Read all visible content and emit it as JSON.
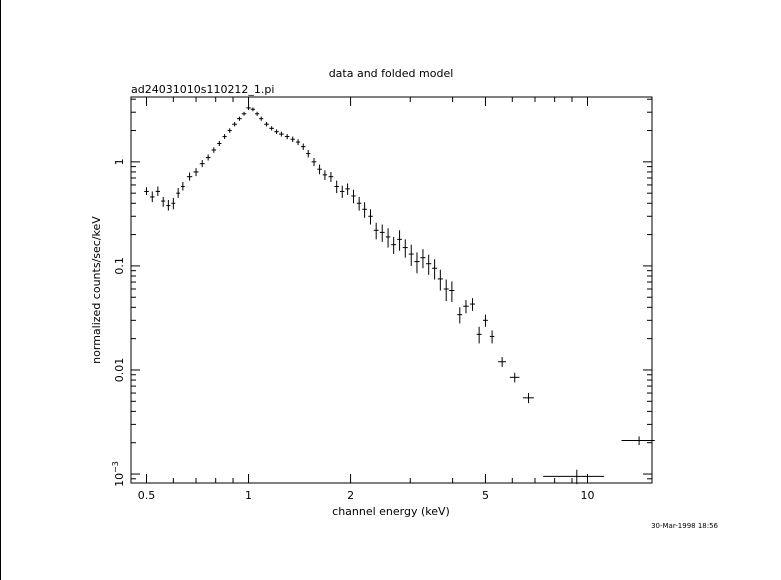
{
  "chart_data": {
    "type": "scatter",
    "title": "data and folded model",
    "subtitle": "ad24031010s110212_1.pi",
    "xlabel": "channel energy (keV)",
    "ylabel": "normalized counts/sec/keV",
    "timestamp": "30-Mar-1998 18:56",
    "x_scale": "log",
    "y_scale": "log",
    "xlim": [
      0.45,
      15.5
    ],
    "ylim": [
      0.00082,
      4.2
    ],
    "xticks": [
      {
        "value": 0.5,
        "label": "0.5"
      },
      {
        "value": 1,
        "label": "1"
      },
      {
        "value": 2,
        "label": "2"
      },
      {
        "value": 5,
        "label": "5"
      },
      {
        "value": 10,
        "label": "10"
      }
    ],
    "yticks": [
      {
        "value": 0.001,
        "label": "10",
        "exp": "−3"
      },
      {
        "value": 0.01,
        "label": "0.01"
      },
      {
        "value": 0.1,
        "label": "0.1"
      },
      {
        "value": 1,
        "label": "1"
      }
    ],
    "grid": false,
    "legend": "none",
    "series": [
      {
        "marker": "cross",
        "points": [
          [
            0.5,
            0.52,
            0.48,
            0.57
          ],
          [
            0.52,
            0.46,
            0.41,
            0.52
          ],
          [
            0.54,
            0.52,
            0.47,
            0.58
          ],
          [
            0.56,
            0.42,
            0.37,
            0.46
          ],
          [
            0.58,
            0.38,
            0.34,
            0.43
          ],
          [
            0.6,
            0.4,
            0.35,
            0.45
          ],
          [
            0.62,
            0.5,
            0.45,
            0.56
          ],
          [
            0.64,
            0.58,
            0.53,
            0.64
          ],
          [
            0.67,
            0.72,
            0.66,
            0.79
          ],
          [
            0.7,
            0.8,
            0.73,
            0.87
          ],
          [
            0.73,
            0.96,
            0.89,
            1.04
          ],
          [
            0.76,
            1.1,
            1.03,
            1.18
          ],
          [
            0.79,
            1.3,
            1.22,
            1.38
          ],
          [
            0.82,
            1.5,
            1.42,
            1.59
          ],
          [
            0.85,
            1.75,
            1.66,
            1.85
          ],
          [
            0.88,
            2.0,
            1.9,
            2.1
          ],
          [
            0.91,
            2.3,
            2.19,
            2.41
          ],
          [
            0.94,
            2.6,
            2.48,
            2.72
          ],
          [
            0.97,
            2.9,
            2.78,
            3.02
          ],
          [
            1.0,
            3.3,
            3.16,
            3.44
          ],
          [
            1.03,
            3.2,
            3.06,
            3.34
          ],
          [
            1.06,
            2.9,
            2.77,
            3.03
          ],
          [
            1.09,
            2.6,
            2.48,
            2.72
          ],
          [
            1.13,
            2.3,
            2.19,
            2.41
          ],
          [
            1.17,
            2.1,
            2.0,
            2.2
          ],
          [
            1.21,
            1.95,
            1.85,
            2.05
          ],
          [
            1.25,
            1.85,
            1.75,
            1.95
          ],
          [
            1.3,
            1.75,
            1.65,
            1.85
          ],
          [
            1.35,
            1.65,
            1.55,
            1.75
          ],
          [
            1.4,
            1.55,
            1.45,
            1.65
          ],
          [
            1.45,
            1.4,
            1.3,
            1.5
          ],
          [
            1.5,
            1.2,
            1.1,
            1.3
          ],
          [
            1.56,
            1.0,
            0.91,
            1.09
          ],
          [
            1.62,
            0.85,
            0.76,
            0.94
          ],
          [
            1.68,
            0.75,
            0.67,
            0.83
          ],
          [
            1.75,
            0.72,
            0.64,
            0.8
          ],
          [
            1.82,
            0.58,
            0.5,
            0.66
          ],
          [
            1.89,
            0.52,
            0.45,
            0.59
          ],
          [
            1.96,
            0.55,
            0.48,
            0.62
          ],
          [
            2.04,
            0.47,
            0.4,
            0.54
          ],
          [
            2.12,
            0.4,
            0.34,
            0.46
          ],
          [
            2.2,
            0.35,
            0.29,
            0.41
          ],
          [
            2.29,
            0.3,
            0.25,
            0.35
          ],
          [
            2.38,
            0.22,
            0.18,
            0.26
          ],
          [
            2.48,
            0.21,
            0.17,
            0.25
          ],
          [
            2.58,
            0.19,
            0.15,
            0.23
          ],
          [
            2.68,
            0.16,
            0.13,
            0.19
          ],
          [
            2.79,
            0.18,
            0.14,
            0.22
          ],
          [
            2.9,
            0.15,
            0.12,
            0.18
          ],
          [
            3.02,
            0.13,
            0.1,
            0.16
          ],
          [
            3.14,
            0.11,
            0.085,
            0.135
          ],
          [
            3.27,
            0.12,
            0.095,
            0.145
          ],
          [
            3.4,
            0.105,
            0.082,
            0.128
          ],
          [
            3.54,
            0.095,
            0.074,
            0.116
          ],
          [
            3.68,
            0.075,
            0.058,
            0.092
          ],
          [
            3.83,
            0.06,
            0.046,
            0.074
          ],
          [
            3.98,
            0.058,
            0.045,
            0.071
          ],
          [
            4.2,
            0.034,
            0.028,
            0.04
          ],
          [
            4.38,
            0.041,
            0.035,
            0.047
          ],
          [
            4.58,
            0.043,
            0.037,
            0.049
          ],
          [
            4.79,
            0.022,
            0.018,
            0.026
          ],
          [
            5.0,
            0.03,
            0.026,
            0.034
          ],
          [
            5.23,
            0.021,
            0.018,
            0.024
          ],
          [
            5.6,
            0.012,
            0.0107,
            0.0133
          ],
          [
            6.1,
            0.0085,
            0.0076,
            0.0094
          ],
          [
            6.7,
            0.0054,
            0.0048,
            0.006
          ],
          [
            9.3,
            0.00095,
            0.0008,
            0.0011
          ],
          [
            14.2,
            0.0021,
            0.0019,
            0.0023
          ]
        ],
        "xerr_keV": [
          0.008,
          0.008,
          0.008,
          0.008,
          0.008,
          0.008,
          0.008,
          0.008,
          0.012,
          0.012,
          0.012,
          0.012,
          0.012,
          0.012,
          0.012,
          0.012,
          0.015,
          0.015,
          0.015,
          0.015,
          0.015,
          0.015,
          0.015,
          0.018,
          0.018,
          0.018,
          0.02,
          0.02,
          0.02,
          0.02,
          0.022,
          0.022,
          0.025,
          0.025,
          0.025,
          0.028,
          0.028,
          0.028,
          0.03,
          0.03,
          0.032,
          0.035,
          0.035,
          0.04,
          0.04,
          0.04,
          0.045,
          0.045,
          0.05,
          0.05,
          0.055,
          0.055,
          0.06,
          0.06,
          0.065,
          0.065,
          0.07,
          0.07,
          0.08,
          0.08,
          0.08,
          0.08,
          0.08,
          0.15,
          0.2,
          0.25,
          1.9,
          1.6
        ]
      }
    ]
  }
}
